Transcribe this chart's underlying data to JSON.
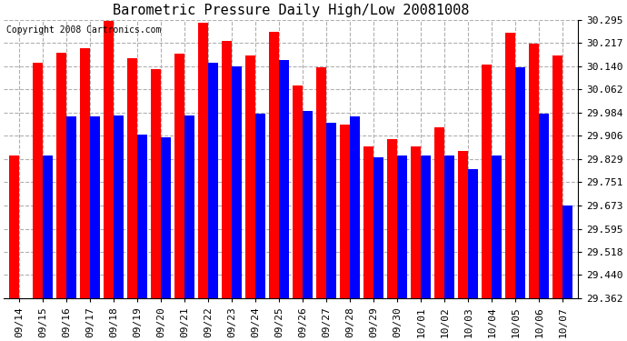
{
  "title": "Barometric Pressure Daily High/Low 20081008",
  "copyright": "Copyright 2008 Cartronics.com",
  "categories": [
    "09/14",
    "09/15",
    "09/16",
    "09/17",
    "09/18",
    "09/19",
    "09/20",
    "09/21",
    "09/22",
    "09/23",
    "09/24",
    "09/25",
    "09/26",
    "09/27",
    "09/28",
    "09/29",
    "09/30",
    "10/01",
    "10/02",
    "10/03",
    "10/04",
    "10/05",
    "10/06",
    "10/07"
  ],
  "highs": [
    29.84,
    30.15,
    30.185,
    30.2,
    30.29,
    30.165,
    30.13,
    30.18,
    30.285,
    30.225,
    30.175,
    30.255,
    30.075,
    30.135,
    29.945,
    29.87,
    29.895,
    29.87,
    29.935,
    29.855,
    30.145,
    30.25,
    30.215,
    30.175
  ],
  "lows": [
    29.362,
    29.84,
    29.97,
    29.97,
    29.975,
    29.91,
    29.9,
    29.975,
    30.15,
    30.14,
    29.98,
    30.16,
    29.99,
    29.95,
    29.97,
    29.835,
    29.84,
    29.84,
    29.84,
    29.795,
    29.84,
    30.135,
    29.98,
    29.673
  ],
  "high_color": "#ff0000",
  "low_color": "#0000ff",
  "bg_color": "#ffffff",
  "plot_bg_color": "#ffffff",
  "grid_color": "#b0b0b0",
  "ymin": 29.362,
  "ymax": 30.295,
  "yticks": [
    29.362,
    29.44,
    29.518,
    29.595,
    29.673,
    29.751,
    29.829,
    29.906,
    29.984,
    30.062,
    30.14,
    30.217,
    30.295
  ],
  "title_fontsize": 11,
  "tick_fontsize": 8,
  "copyright_fontsize": 7
}
